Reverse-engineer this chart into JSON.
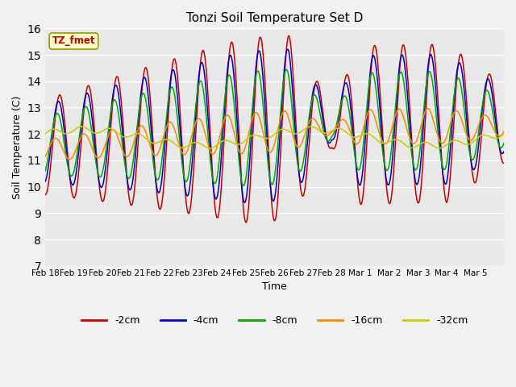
{
  "title": "Tonzi Soil Temperature Set D",
  "xlabel": "Time",
  "ylabel": "Soil Temperature (C)",
  "dataset_label": "TZ_fmet",
  "ylim": [
    7.0,
    16.0
  ],
  "yticks": [
    7.0,
    8.0,
    9.0,
    10.0,
    11.0,
    12.0,
    13.0,
    14.0,
    15.0,
    16.0
  ],
  "colors": {
    "-2cm": "#cc0000",
    "-4cm": "#0000cc",
    "-8cm": "#00aa00",
    "-16cm": "#ff8800",
    "-32cm": "#cccc00"
  },
  "fig_bg": "#f0f0f0",
  "plot_bg": "#e8e8e8",
  "x_labels": [
    "Feb 18",
    "Feb 19",
    "Feb 20",
    "Feb 21",
    "Feb 22",
    "Feb 23",
    "Feb 24",
    "Feb 25",
    "Feb 26",
    "Feb 27",
    "Feb 28",
    "Mar 1",
    "Mar 2",
    "Mar 3",
    "Mar 4",
    "Mar 5"
  ],
  "n_days": 16,
  "legend_items": [
    "-2cm",
    "-4cm",
    "-8cm",
    "-16cm",
    "-32cm"
  ]
}
